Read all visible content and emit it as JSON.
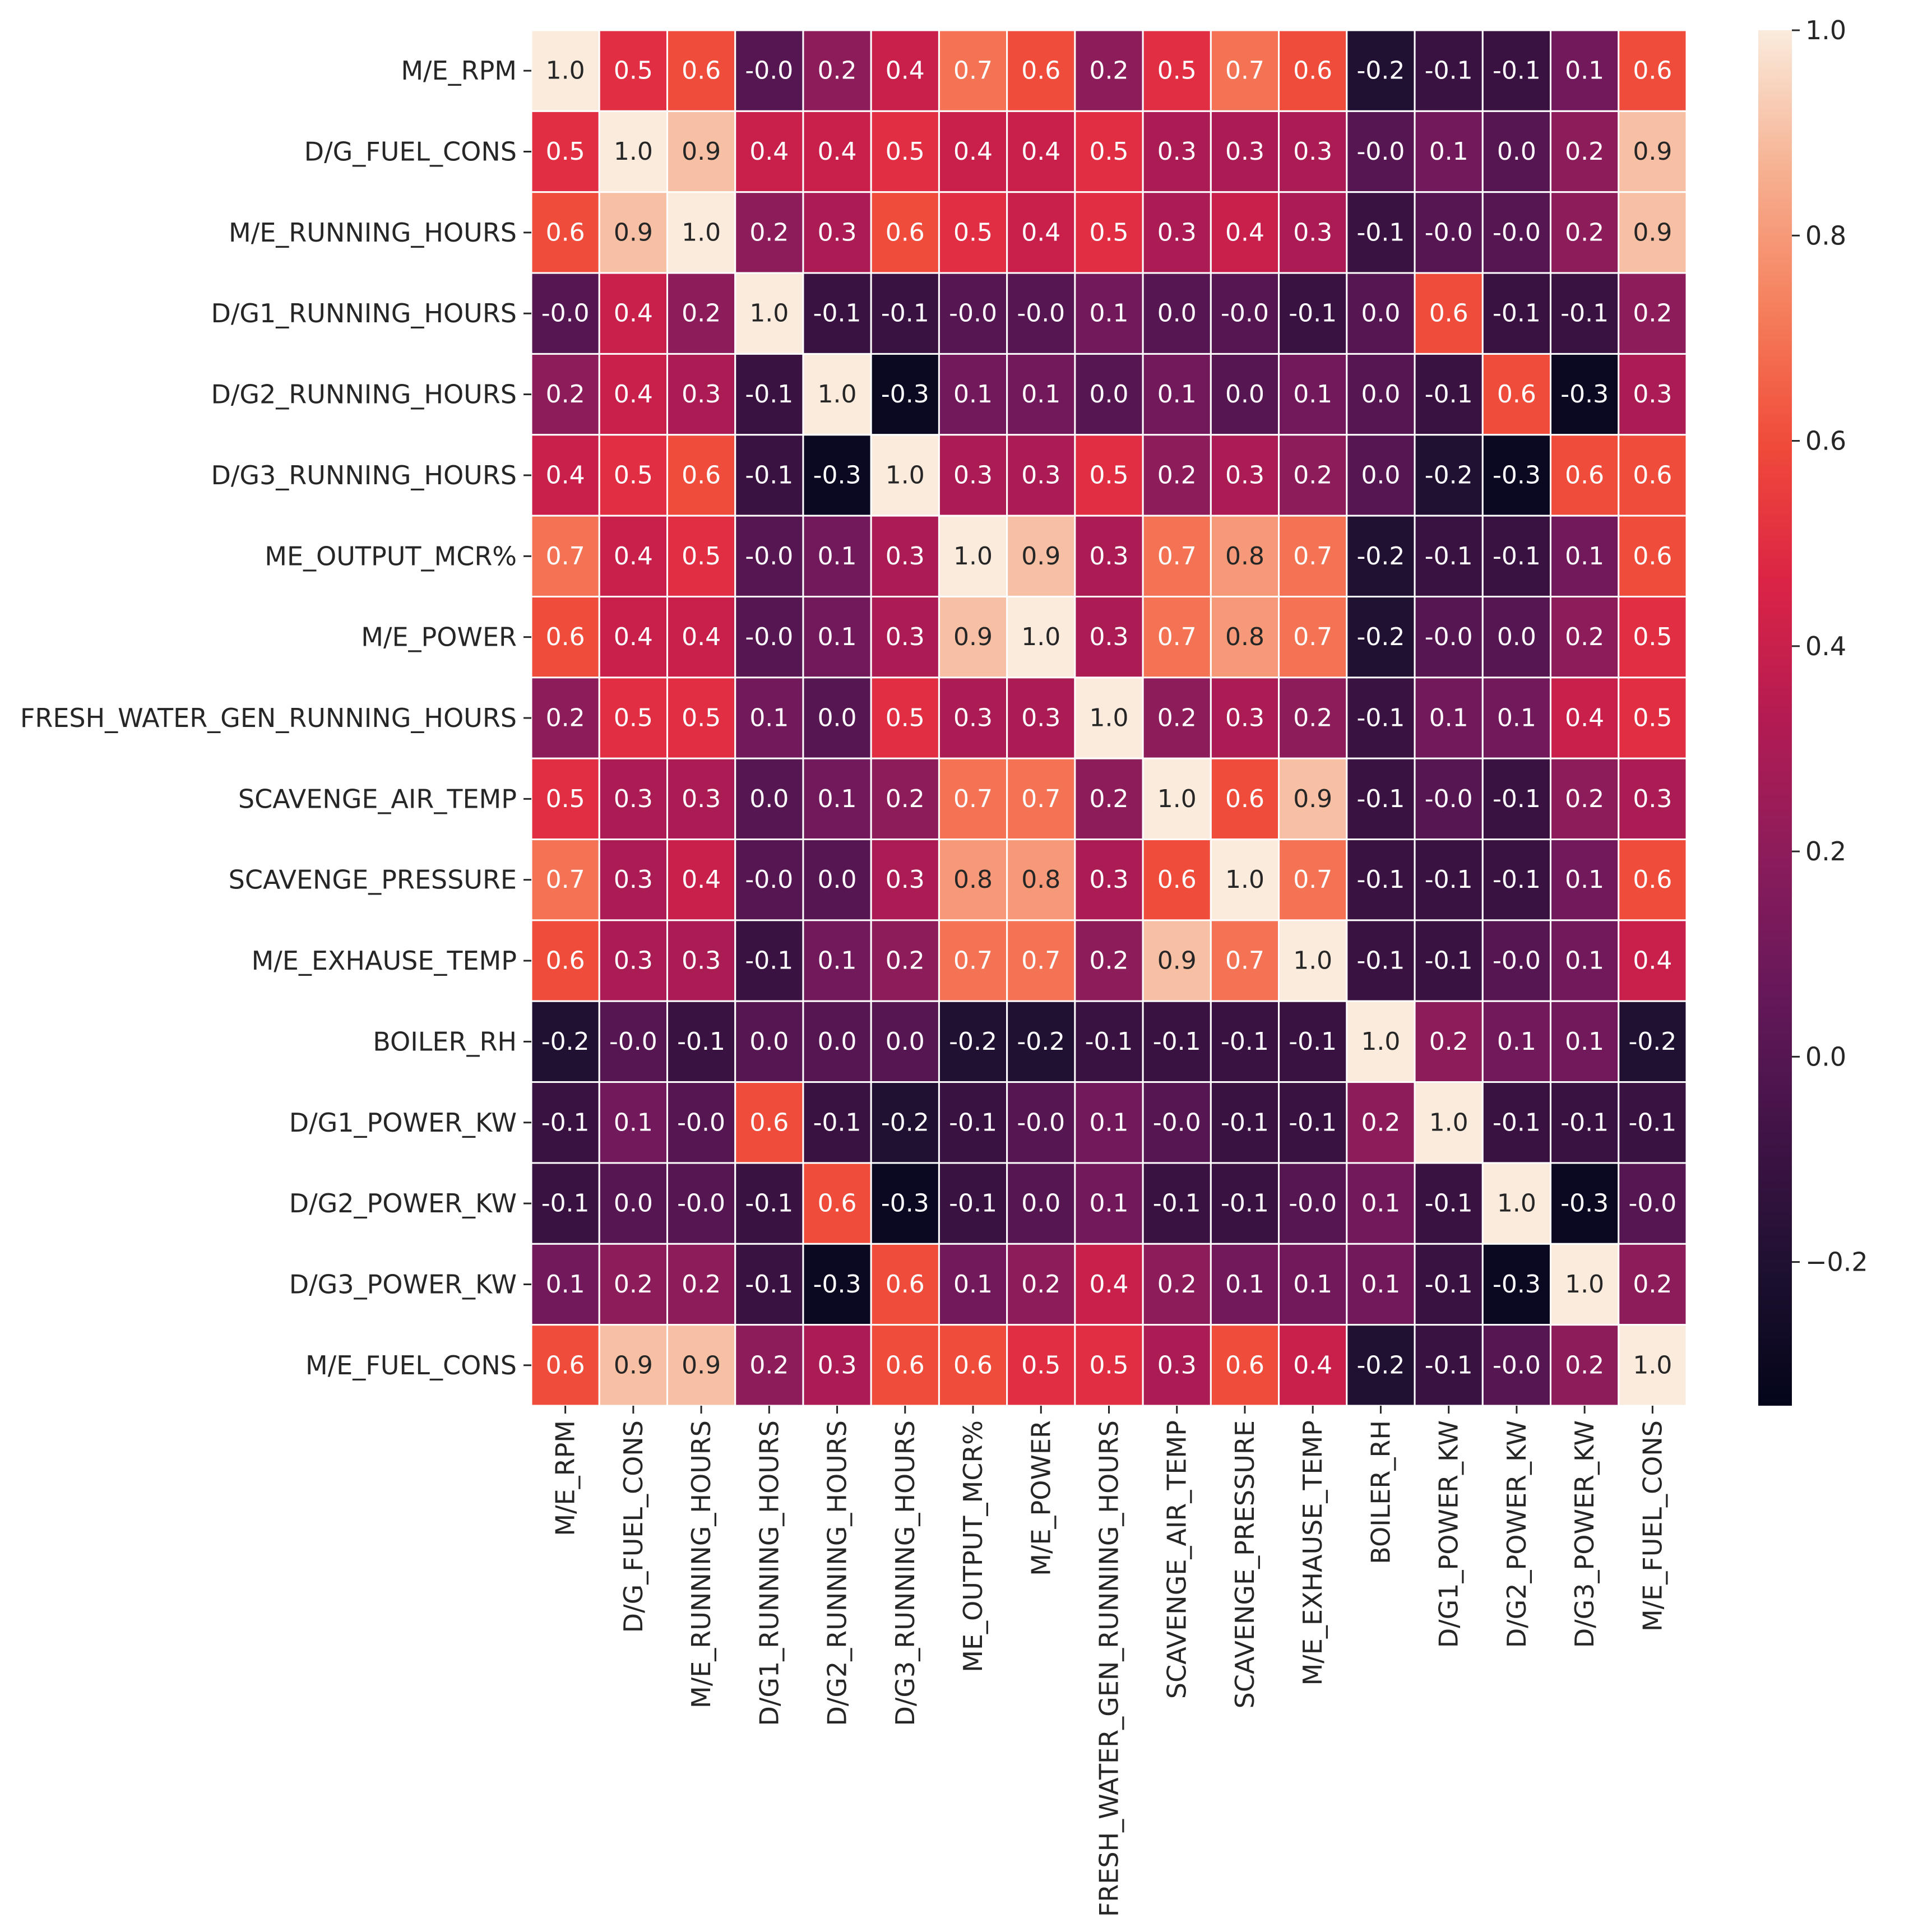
{
  "chart_data": {
    "type": "heatmap",
    "title": "",
    "xlabel": "",
    "ylabel": "",
    "labels": [
      "M/E_RPM",
      "D/G_FUEL_CONS",
      "M/E_RUNNING_HOURS",
      "D/G1_RUNNING_HOURS",
      "D/G2_RUNNING_HOURS",
      "D/G3_RUNNING_HOURS",
      "ME_OUTPUT_MCR%",
      "M/E_POWER",
      "FRESH_WATER_GEN_RUNNING_HOURS",
      "SCAVENGE_AIR_TEMP",
      "SCAVENGE_PRESSURE",
      "M/E_EXHAUSE_TEMP",
      "BOILER_RH",
      "D/G1_POWER_KW",
      "D/G2_POWER_KW",
      "D/G3_POWER_KW",
      "M/E_FUEL_CONS"
    ],
    "annotations": [
      [
        "1.0",
        "0.5",
        "0.6",
        "-0.0",
        "0.2",
        "0.4",
        "0.7",
        "0.6",
        "0.2",
        "0.5",
        "0.7",
        "0.6",
        "-0.2",
        "-0.1",
        "-0.1",
        "0.1",
        "0.6"
      ],
      [
        "0.5",
        "1.0",
        "0.9",
        "0.4",
        "0.4",
        "0.5",
        "0.4",
        "0.4",
        "0.5",
        "0.3",
        "0.3",
        "0.3",
        "-0.0",
        "0.1",
        "0.0",
        "0.2",
        "0.9"
      ],
      [
        "0.6",
        "0.9",
        "1.0",
        "0.2",
        "0.3",
        "0.6",
        "0.5",
        "0.4",
        "0.5",
        "0.3",
        "0.4",
        "0.3",
        "-0.1",
        "-0.0",
        "-0.0",
        "0.2",
        "0.9"
      ],
      [
        "-0.0",
        "0.4",
        "0.2",
        "1.0",
        "-0.1",
        "-0.1",
        "-0.0",
        "-0.0",
        "0.1",
        "0.0",
        "-0.0",
        "-0.1",
        "0.0",
        "0.6",
        "-0.1",
        "-0.1",
        "0.2"
      ],
      [
        "0.2",
        "0.4",
        "0.3",
        "-0.1",
        "1.0",
        "-0.3",
        "0.1",
        "0.1",
        "0.0",
        "0.1",
        "0.0",
        "0.1",
        "0.0",
        "-0.1",
        "0.6",
        "-0.3",
        "0.3"
      ],
      [
        "0.4",
        "0.5",
        "0.6",
        "-0.1",
        "-0.3",
        "1.0",
        "0.3",
        "0.3",
        "0.5",
        "0.2",
        "0.3",
        "0.2",
        "0.0",
        "-0.2",
        "-0.3",
        "0.6",
        "0.6"
      ],
      [
        "0.7",
        "0.4",
        "0.5",
        "-0.0",
        "0.1",
        "0.3",
        "1.0",
        "0.9",
        "0.3",
        "0.7",
        "0.8",
        "0.7",
        "-0.2",
        "-0.1",
        "-0.1",
        "0.1",
        "0.6"
      ],
      [
        "0.6",
        "0.4",
        "0.4",
        "-0.0",
        "0.1",
        "0.3",
        "0.9",
        "1.0",
        "0.3",
        "0.7",
        "0.8",
        "0.7",
        "-0.2",
        "-0.0",
        "0.0",
        "0.2",
        "0.5"
      ],
      [
        "0.2",
        "0.5",
        "0.5",
        "0.1",
        "0.0",
        "0.5",
        "0.3",
        "0.3",
        "1.0",
        "0.2",
        "0.3",
        "0.2",
        "-0.1",
        "0.1",
        "0.1",
        "0.4",
        "0.5"
      ],
      [
        "0.5",
        "0.3",
        "0.3",
        "0.0",
        "0.1",
        "0.2",
        "0.7",
        "0.7",
        "0.2",
        "1.0",
        "0.6",
        "0.9",
        "-0.1",
        "-0.0",
        "-0.1",
        "0.2",
        "0.3"
      ],
      [
        "0.7",
        "0.3",
        "0.4",
        "-0.0",
        "0.0",
        "0.3",
        "0.8",
        "0.8",
        "0.3",
        "0.6",
        "1.0",
        "0.7",
        "-0.1",
        "-0.1",
        "-0.1",
        "0.1",
        "0.6"
      ],
      [
        "0.6",
        "0.3",
        "0.3",
        "-0.1",
        "0.1",
        "0.2",
        "0.7",
        "0.7",
        "0.2",
        "0.9",
        "0.7",
        "1.0",
        "-0.1",
        "-0.1",
        "-0.0",
        "0.1",
        "0.4"
      ],
      [
        "-0.2",
        "-0.0",
        "-0.1",
        "0.0",
        "0.0",
        "0.0",
        "-0.2",
        "-0.2",
        "-0.1",
        "-0.1",
        "-0.1",
        "-0.1",
        "1.0",
        "0.2",
        "0.1",
        "0.1",
        "-0.2"
      ],
      [
        "-0.1",
        "0.1",
        "-0.0",
        "0.6",
        "-0.1",
        "-0.2",
        "-0.1",
        "-0.0",
        "0.1",
        "-0.0",
        "-0.1",
        "-0.1",
        "0.2",
        "1.0",
        "-0.1",
        "-0.1",
        "-0.1"
      ],
      [
        "-0.1",
        "0.0",
        "-0.0",
        "-0.1",
        "0.6",
        "-0.3",
        "-0.1",
        "0.0",
        "0.1",
        "-0.1",
        "-0.1",
        "-0.0",
        "0.1",
        "-0.1",
        "1.0",
        "-0.3",
        "-0.0"
      ],
      [
        "0.1",
        "0.2",
        "0.2",
        "-0.1",
        "-0.3",
        "0.6",
        "0.1",
        "0.2",
        "0.4",
        "0.2",
        "0.1",
        "0.1",
        "0.1",
        "-0.1",
        "-0.3",
        "1.0",
        "0.2"
      ],
      [
        "0.6",
        "0.9",
        "0.9",
        "0.2",
        "0.3",
        "0.6",
        "0.6",
        "0.5",
        "0.5",
        "0.3",
        "0.6",
        "0.4",
        "-0.2",
        "-0.1",
        "-0.0",
        "0.2",
        "1.0"
      ]
    ],
    "colorbar": {
      "range": [
        -0.34,
        1.0
      ],
      "ticks": [
        1.0,
        0.8,
        0.6,
        0.4,
        0.2,
        0.0,
        -0.2
      ],
      "tick_labels": [
        "1.0",
        "0.8",
        "0.6",
        "0.4",
        "0.2",
        "0.0",
        "−0.2"
      ],
      "colormap": "rocket"
    },
    "grid": "white cell borders",
    "legend": "colorbar-right"
  }
}
